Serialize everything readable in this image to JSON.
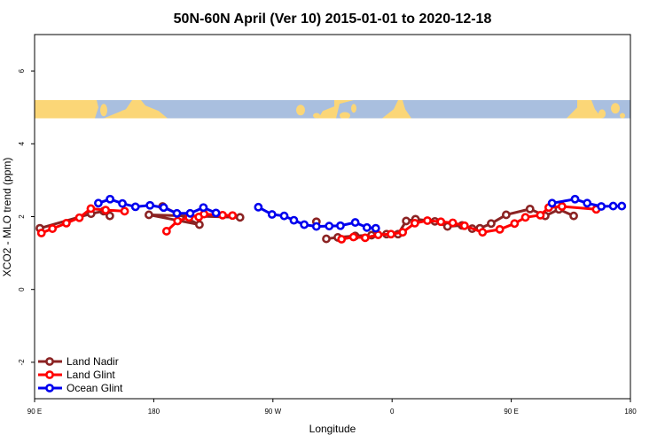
{
  "chart_data": {
    "type": "line",
    "title": "50N-60N April (Ver 10)   2015-01-01 to 2020-12-18",
    "xlabel": "Longitude",
    "ylabel": "XCO2 - MLO trend (ppm)",
    "xlim": [
      -90,
      180
    ],
    "ylim": [
      -3,
      7
    ],
    "x_ticks": [
      {
        "value": -90,
        "label": "90 E"
      },
      {
        "value": -36,
        "label": "180"
      },
      {
        "value": 18,
        "label": "90 W"
      },
      {
        "value": 72,
        "label": "0"
      },
      {
        "value": 126,
        "label": "90 E"
      },
      {
        "value": 180,
        "label": "180"
      }
    ],
    "y_ticks": [
      {
        "value": -2,
        "label": "-2"
      },
      {
        "value": 0,
        "label": "0"
      },
      {
        "value": 2,
        "label": "2"
      },
      {
        "value": 4,
        "label": "4"
      },
      {
        "value": 6,
        "label": "6"
      }
    ],
    "map_band": {
      "y_range": [
        4.7,
        5.2
      ],
      "ocean_color": "#a9bfdf",
      "land_color": "#fbd677"
    },
    "legend_position": "bottom-left",
    "series": [
      {
        "name": "Land Nadir",
        "color": "#8b2323",
        "x": [
          -87.6,
          -64.4,
          -58.7,
          -55.9,
          -32,
          -15.3,
          -38.2,
          3.1,
          37.7,
          42.2,
          47.4,
          55.3,
          62.7,
          69.5,
          74.7,
          78.4,
          82.6,
          91.4,
          97.1,
          103.7,
          108.3,
          111.8,
          116.9,
          123.7,
          134.5,
          141.4,
          147.6,
          154.3
        ],
        "y": [
          1.68,
          2.08,
          2.15,
          2.02,
          2.28,
          1.78,
          2.05,
          1.98,
          1.86,
          1.39,
          1.43,
          1.47,
          1.49,
          1.52,
          1.52,
          1.88,
          1.93,
          1.87,
          1.73,
          1.76,
          1.67,
          1.68,
          1.81,
          2.05,
          2.21,
          2.02,
          2.2,
          2.02
        ],
        "segments": [
          [
            0,
            3
          ],
          [
            4,
            7
          ],
          [
            8,
            8
          ],
          [
            9,
            13
          ],
          [
            14,
            27
          ]
        ]
      },
      {
        "name": "Land Glint",
        "color": "#ff0000",
        "x": [
          -86.9,
          -81.9,
          -75.6,
          -69.7,
          -64.5,
          -57.8,
          -49.2,
          -15.6,
          -30.2,
          -25.2,
          -20,
          -13.2,
          -4.8,
          -0.3,
          49.1,
          54.5,
          59.8,
          65.7,
          71.5,
          76.8,
          82.3,
          88,
          94.1,
          99.5,
          104.8,
          113,
          120.8,
          127.5,
          132.4,
          139.2,
          143,
          149,
          164.5
        ],
        "y": [
          1.55,
          1.67,
          1.82,
          1.97,
          2.22,
          2.18,
          2.15,
          1.99,
          1.6,
          1.88,
          1.98,
          2.07,
          2.04,
          2.03,
          1.38,
          1.44,
          1.42,
          1.5,
          1.52,
          1.57,
          1.82,
          1.89,
          1.86,
          1.83,
          1.75,
          1.57,
          1.65,
          1.81,
          1.98,
          2.04,
          2.25,
          2.28,
          2.2
        ],
        "segments": [
          [
            0,
            6
          ],
          [
            7,
            7
          ],
          [
            8,
            13
          ],
          [
            14,
            32
          ]
        ]
      },
      {
        "name": "Ocean Glint",
        "color": "#0000ee",
        "x": [
          -61.1,
          -55.8,
          -50.2,
          -44.3,
          -37.7,
          -31.5,
          -25.5,
          -19.5,
          -13.5,
          -7.8,
          11.4,
          17.6,
          23.1,
          27.5,
          32.2,
          37.7,
          43.5,
          48.6,
          55.3,
          60.6,
          64.6,
          144.5,
          154.9,
          160.4,
          166.8,
          172.2,
          176.1
        ],
        "y": [
          2.37,
          2.48,
          2.36,
          2.27,
          2.31,
          2.25,
          2.09,
          2.09,
          2.25,
          2.1,
          2.26,
          2.06,
          2.02,
          1.9,
          1.78,
          1.73,
          1.74,
          1.75,
          1.84,
          1.7,
          1.68,
          2.37,
          2.48,
          2.37,
          2.28,
          2.29,
          2.29
        ],
        "segments": [
          [
            0,
            9
          ],
          [
            10,
            20
          ],
          [
            21,
            26
          ]
        ]
      }
    ]
  }
}
